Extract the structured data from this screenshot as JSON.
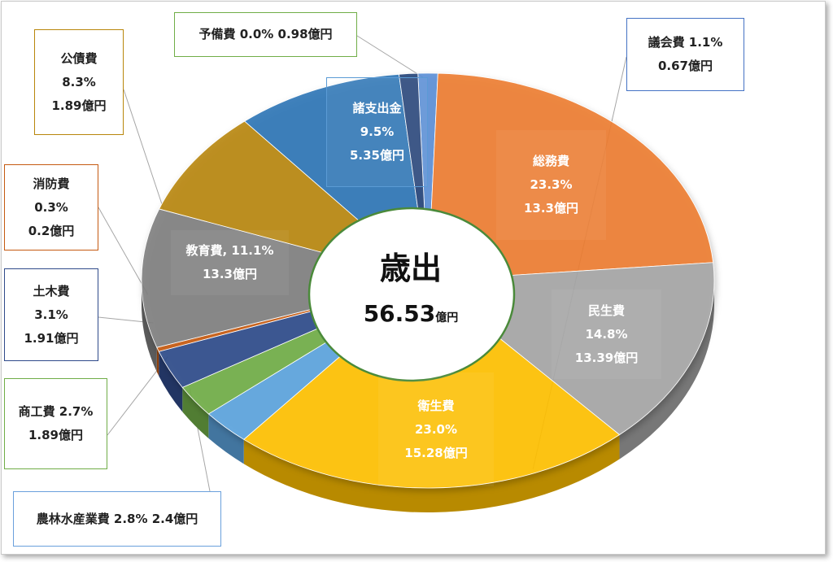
{
  "chart_data": {
    "type": "pie",
    "center_title": "歳出",
    "center_total_value": "56.53",
    "center_total_unit": "億円",
    "series": [
      {
        "key": "giin",
        "name": "議会費",
        "percent": 1.1,
        "amount": 0.67,
        "lines": [
          "議会費 1.1%",
          "0.67億円"
        ],
        "color": "#5b8fd6"
      },
      {
        "key": "somu",
        "name": "総務費",
        "percent": 23.3,
        "amount": 13.3,
        "lines": [
          "総務費",
          "23.3%",
          "13.3億円"
        ],
        "color": "#ed7d31"
      },
      {
        "key": "minsei",
        "name": "民生費",
        "percent": 14.8,
        "amount": 13.39,
        "lines": [
          "民生費",
          "14.8%",
          "13.39億円"
        ],
        "color": "#a5a5a5"
      },
      {
        "key": "eisei",
        "name": "衛生費",
        "percent": 23.0,
        "amount": 15.28,
        "lines": [
          "衛生費",
          "23.0%",
          "15.28億円"
        ],
        "color": "#ffc000"
      },
      {
        "key": "norin",
        "name": "農林水産業費",
        "percent": 2.8,
        "amount": 2.4,
        "lines": [
          "農林水産業費 2.8% 2.4億円"
        ],
        "color": "#5ba3dd"
      },
      {
        "key": "shoko",
        "name": "商工費",
        "percent": 2.7,
        "amount": 1.89,
        "lines": [
          "商工費  2.7%",
          "1.89億円"
        ],
        "color": "#70ad47"
      },
      {
        "key": "doboku",
        "name": "土木費",
        "percent": 3.1,
        "amount": 1.91,
        "lines": [
          "土木費",
          "3.1%",
          "1.91億円"
        ],
        "color": "#2f4a8a"
      },
      {
        "key": "shobo",
        "name": "消防費",
        "percent": 0.3,
        "amount": 0.2,
        "lines": [
          "消防費",
          "0.3%",
          "0.2億円"
        ],
        "color": "#c55a11"
      },
      {
        "key": "kyoiku",
        "name": "教育費",
        "percent": 11.1,
        "amount": 13.3,
        "lines": [
          "教育費, 11.1%",
          "13.3億円"
        ],
        "color": "#7f7f7f"
      },
      {
        "key": "kosai",
        "name": "公債費",
        "percent": 8.3,
        "amount": 1.89,
        "lines": [
          "公債費",
          "8.3%",
          "1.89億円"
        ],
        "color": "#b8860b"
      },
      {
        "key": "shoshishutsu",
        "name": "諸支出金",
        "percent": 9.5,
        "amount": 5.35,
        "lines": [
          "諸支出金",
          "9.5%",
          "5.35億円"
        ],
        "color": "#2e75b6"
      },
      {
        "key": "yobi",
        "name": "予備費",
        "percent": 0.0,
        "amount": 0.98,
        "lines": [
          "予備費  0.0% 0.98億円"
        ],
        "color": "#264478"
      }
    ]
  }
}
